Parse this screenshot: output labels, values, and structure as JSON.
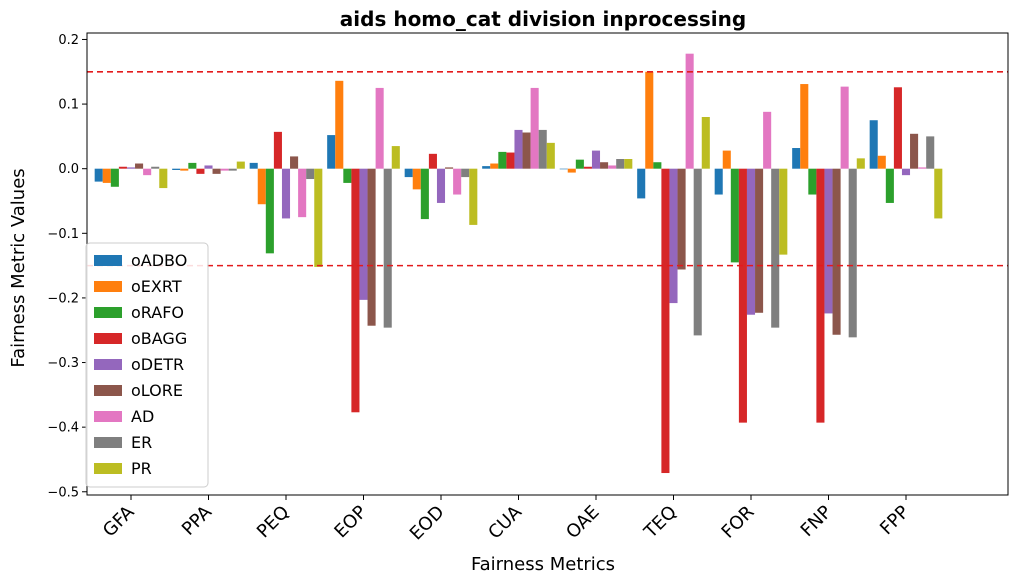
{
  "chart_data": {
    "type": "bar",
    "title": "aids homo_cat division inprocessing",
    "xlabel": "Fairness Metrics",
    "ylabel": "Fairness Metric Values",
    "ylim": [
      -0.505,
      0.21
    ],
    "yticks": [
      0.2,
      0.1,
      0.0,
      -0.1,
      -0.2,
      -0.3,
      -0.4,
      -0.5
    ],
    "ytick_labels": [
      "0.2",
      "0.1",
      "0.0",
      "−0.1",
      "−0.2",
      "−0.3",
      "−0.4",
      "−0.5"
    ],
    "categories": [
      "GFA",
      "PPA",
      "PEQ",
      "EOP",
      "EOD",
      "CUA",
      "OAE",
      "TEQ",
      "FOR",
      "FNP",
      "FPP"
    ],
    "reference_lines": [
      0.15,
      -0.15
    ],
    "reference_line_color": "#e31a1c",
    "grid": false,
    "legend_position": "lower-left",
    "series": [
      {
        "name": "oADBO",
        "color": "#1f77b4",
        "values": [
          -0.02,
          -0.002,
          0.009,
          0.052,
          -0.013,
          0.004,
          0.0,
          -0.046,
          -0.04,
          0.032,
          0.075
        ]
      },
      {
        "name": "oEXRT",
        "color": "#ff7f0e",
        "values": [
          -0.022,
          -0.003,
          -0.055,
          0.136,
          -0.032,
          0.008,
          -0.006,
          0.15,
          0.028,
          0.131,
          0.02
        ]
      },
      {
        "name": "oRAFO",
        "color": "#2ca02c",
        "values": [
          -0.028,
          0.009,
          -0.131,
          -0.022,
          -0.078,
          0.026,
          0.014,
          0.01,
          -0.145,
          -0.04,
          -0.053
        ]
      },
      {
        "name": "oBAGG",
        "color": "#d62728",
        "values": [
          0.003,
          -0.008,
          0.057,
          -0.377,
          0.023,
          0.025,
          0.003,
          -0.471,
          -0.393,
          -0.393,
          0.126
        ]
      },
      {
        "name": "oDETR",
        "color": "#9467bd",
        "values": [
          0.002,
          0.005,
          -0.077,
          -0.203,
          -0.053,
          0.06,
          0.028,
          -0.208,
          -0.226,
          -0.224,
          -0.01
        ]
      },
      {
        "name": "oLORE",
        "color": "#8c564b",
        "values": [
          0.008,
          -0.008,
          0.019,
          -0.243,
          0.002,
          0.056,
          0.01,
          -0.156,
          -0.223,
          -0.257,
          0.054
        ]
      },
      {
        "name": "AD",
        "color": "#e377c2",
        "values": [
          -0.01,
          -0.003,
          -0.075,
          0.125,
          -0.04,
          0.125,
          0.005,
          0.178,
          0.088,
          0.127,
          0.002
        ]
      },
      {
        "name": "ER",
        "color": "#7f7f7f",
        "values": [
          0.003,
          -0.003,
          -0.016,
          -0.246,
          -0.013,
          0.06,
          0.015,
          -0.258,
          -0.246,
          -0.261,
          0.05
        ]
      },
      {
        "name": "PR",
        "color": "#bcbd22",
        "values": [
          -0.03,
          0.011,
          -0.152,
          0.035,
          -0.087,
          0.04,
          0.015,
          0.08,
          -0.133,
          0.016,
          -0.077
        ]
      }
    ]
  }
}
